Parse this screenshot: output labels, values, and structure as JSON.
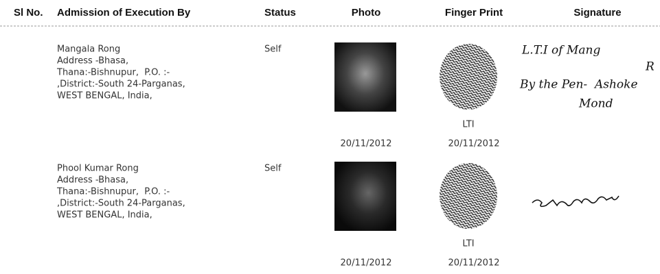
{
  "table": {
    "headers": [
      "Sl No.",
      "Admission of Execution By",
      "Status",
      "Photo",
      "Finger Print",
      "Signature"
    ],
    "rows": [
      {
        "name": "Mangala Rong",
        "address": [
          "Address -Bhasa,",
          "Thana:-Bishnupur,  P.O. :-",
          ",District:-South 24-Parganas,",
          "WEST BENGAL, India,"
        ],
        "status": "Self",
        "photo_date": "20/11/2012",
        "finger_label": "LTI",
        "finger_date": "20/11/2012",
        "signature": [
          "L.T.I of Mang",
          "R",
          "By the Pen-  Ashoke",
          "Mond"
        ]
      },
      {
        "name": "Phool Kumar Rong",
        "address": [
          "Address -Bhasa,",
          "Thana:-Bishnupur,  P.O. :-",
          ",District:-South 24-Parganas,",
          "WEST BENGAL, India,"
        ],
        "status": "Self",
        "photo_date": "20/11/2012",
        "finger_label": "LTI",
        "finger_date": "20/11/2012",
        "signature": []
      }
    ]
  }
}
